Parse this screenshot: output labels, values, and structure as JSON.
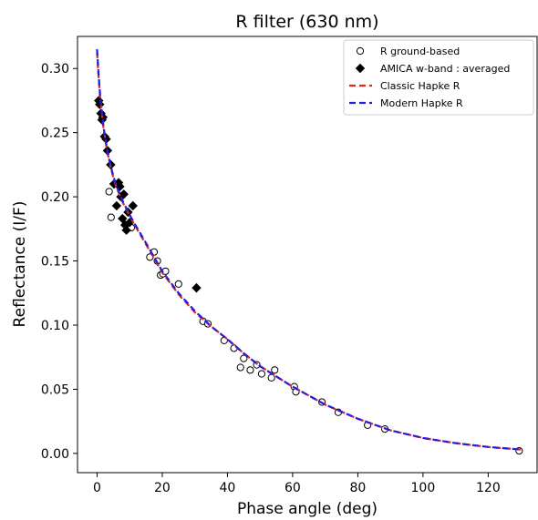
{
  "chart_data": {
    "type": "scatter",
    "title": "R filter (630 nm)",
    "xlabel": "Phase angle (deg)",
    "ylabel": "Reflectance (I/F)",
    "xlim": [
      -6,
      135
    ],
    "ylim": [
      -0.015,
      0.325
    ],
    "xticks": [
      "0",
      "20",
      "40",
      "60",
      "80",
      "100",
      "120"
    ],
    "yticks": [
      "0.00",
      "0.05",
      "0.10",
      "0.15",
      "0.20",
      "0.25",
      "0.30"
    ],
    "grid": false,
    "legend_position": "top-right",
    "series": [
      {
        "name": "R ground-based",
        "kind": "scatter",
        "marker": "open-circle",
        "color": "#000000",
        "x": [
          3.7,
          4.3,
          10.5,
          16.2,
          17.5,
          18.5,
          19.5,
          20.2,
          21,
          25,
          32.5,
          34,
          39,
          42,
          44,
          45,
          47,
          49,
          50.5,
          53.5,
          54.5,
          60.5,
          61,
          69,
          74,
          83,
          88.3,
          129.5
        ],
        "y": [
          0.204,
          0.184,
          0.176,
          0.153,
          0.157,
          0.15,
          0.139,
          0.14,
          0.142,
          0.132,
          0.103,
          0.101,
          0.088,
          0.082,
          0.067,
          0.074,
          0.065,
          0.069,
          0.062,
          0.059,
          0.065,
          0.052,
          0.048,
          0.04,
          0.032,
          0.022,
          0.019,
          0.002
        ]
      },
      {
        "name": "AMICA w-band : averaged",
        "kind": "scatter",
        "marker": "diamond",
        "color": "#000000",
        "x": [
          0.5,
          0.8,
          1.2,
          1.5,
          1.8,
          2.3,
          2.8,
          3.2,
          4.2,
          5.2,
          6.0,
          6.6,
          7.0,
          7.3,
          7.8,
          8.2,
          8.6,
          9.0,
          9.5,
          10.0,
          11.0,
          30.5
        ],
        "y": [
          0.275,
          0.272,
          0.265,
          0.26,
          0.262,
          0.247,
          0.245,
          0.236,
          0.225,
          0.21,
          0.193,
          0.211,
          0.208,
          0.2,
          0.183,
          0.202,
          0.178,
          0.174,
          0.188,
          0.18,
          0.193,
          0.129
        ]
      },
      {
        "name": "Classic Hapke R",
        "kind": "line",
        "dash": "dashed",
        "color": "#e8231f",
        "x": [
          0,
          0.5,
          1,
          2,
          3,
          4,
          5,
          6,
          8,
          10,
          12,
          15,
          20,
          25,
          30,
          35,
          40,
          45,
          50,
          55,
          60,
          70,
          80,
          90,
          100,
          110,
          120,
          130
        ],
        "y": [
          0.313,
          0.292,
          0.276,
          0.253,
          0.237,
          0.225,
          0.215,
          0.207,
          0.195,
          0.185,
          0.176,
          0.163,
          0.141,
          0.124,
          0.11,
          0.099,
          0.089,
          0.078,
          0.068,
          0.06,
          0.052,
          0.038,
          0.027,
          0.018,
          0.012,
          0.008,
          0.005,
          0.003
        ]
      },
      {
        "name": "Modern Hapke R",
        "kind": "line",
        "dash": "dashed",
        "color": "#1f1fe0",
        "x": [
          0,
          0.5,
          1,
          2,
          3,
          4,
          5,
          6,
          8,
          10,
          12,
          15,
          20,
          25,
          30,
          35,
          40,
          45,
          50,
          55,
          60,
          70,
          80,
          90,
          100,
          110,
          120,
          130
        ],
        "y": [
          0.315,
          0.294,
          0.277,
          0.254,
          0.238,
          0.226,
          0.216,
          0.208,
          0.196,
          0.186,
          0.177,
          0.164,
          0.142,
          0.125,
          0.111,
          0.099,
          0.089,
          0.078,
          0.068,
          0.06,
          0.052,
          0.038,
          0.027,
          0.018,
          0.012,
          0.008,
          0.005,
          0.003
        ]
      }
    ]
  }
}
